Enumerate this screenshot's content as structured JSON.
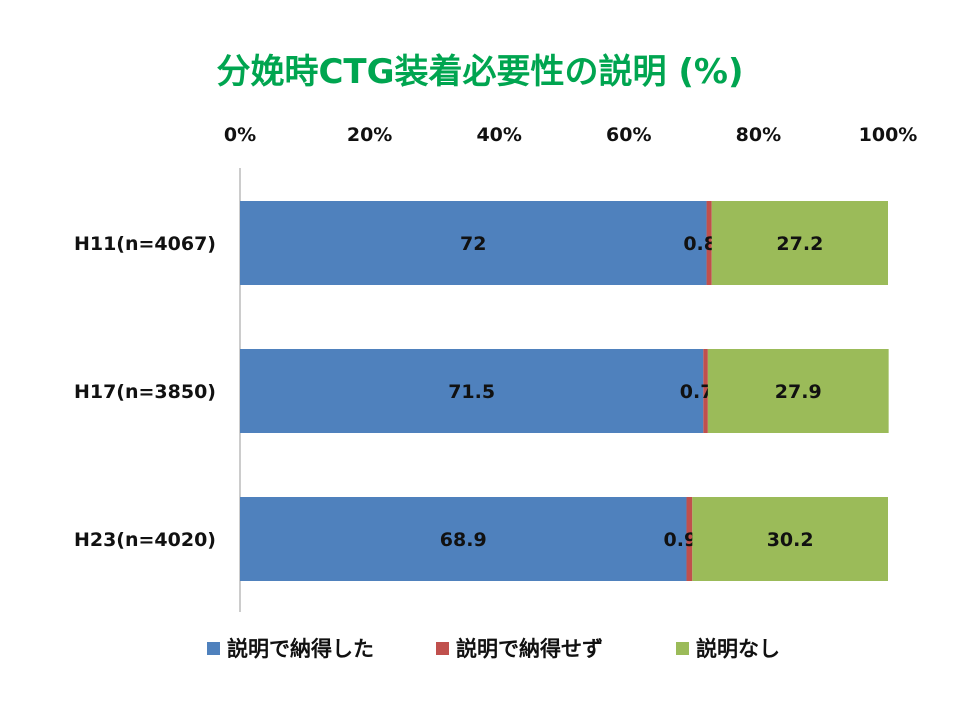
{
  "chart_data": {
    "type": "bar",
    "orientation": "horizontal",
    "stacked": true,
    "title": "分娩時CTG装着必要性の説明 (%)",
    "x_ticks": [
      "0%",
      "20%",
      "40%",
      "60%",
      "80%",
      "100%"
    ],
    "xlim": [
      0,
      100
    ],
    "grid": false,
    "legend_position": "bottom",
    "categories": [
      "H11(n=4067)",
      "H17(n=3850)",
      "H23(n=4020)"
    ],
    "series": [
      {
        "name": "説明で納得した",
        "color": "#4f81bd",
        "values": [
          72,
          71.5,
          68.9
        ]
      },
      {
        "name": "説明で納得せず",
        "color": "#c0504d",
        "values": [
          0.8,
          0.7,
          0.9
        ]
      },
      {
        "name": "説明なし",
        "color": "#9bbb59",
        "values": [
          27.2,
          27.9,
          30.2
        ]
      }
    ],
    "title_color": "#00a550"
  }
}
